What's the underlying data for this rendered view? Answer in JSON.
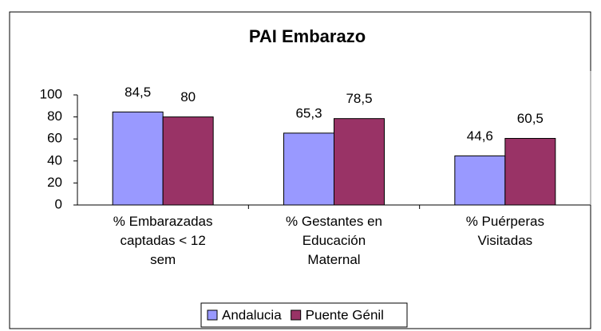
{
  "chart_data": {
    "type": "bar",
    "title": "PAI Embarazo",
    "categories": [
      "% Embarazadas captadas < 12 sem",
      "% Gestantes en Educación Maternal",
      "% Puérperas Visitadas"
    ],
    "series": [
      {
        "name": "Andalucia",
        "color": "#9999ff",
        "values": [
          84.5,
          65.3,
          44.6
        ],
        "value_labels": [
          "84,5",
          "65,3",
          "44,6"
        ]
      },
      {
        "name": "Puente Génil",
        "color": "#993366",
        "values": [
          80,
          78.5,
          60.5
        ],
        "value_labels": [
          "80",
          "78,5",
          "60,5"
        ]
      }
    ],
    "ylim": [
      0,
      100
    ],
    "yticks": [
      0,
      20,
      40,
      60,
      80,
      100
    ],
    "grid": false,
    "legend": "bottom"
  }
}
